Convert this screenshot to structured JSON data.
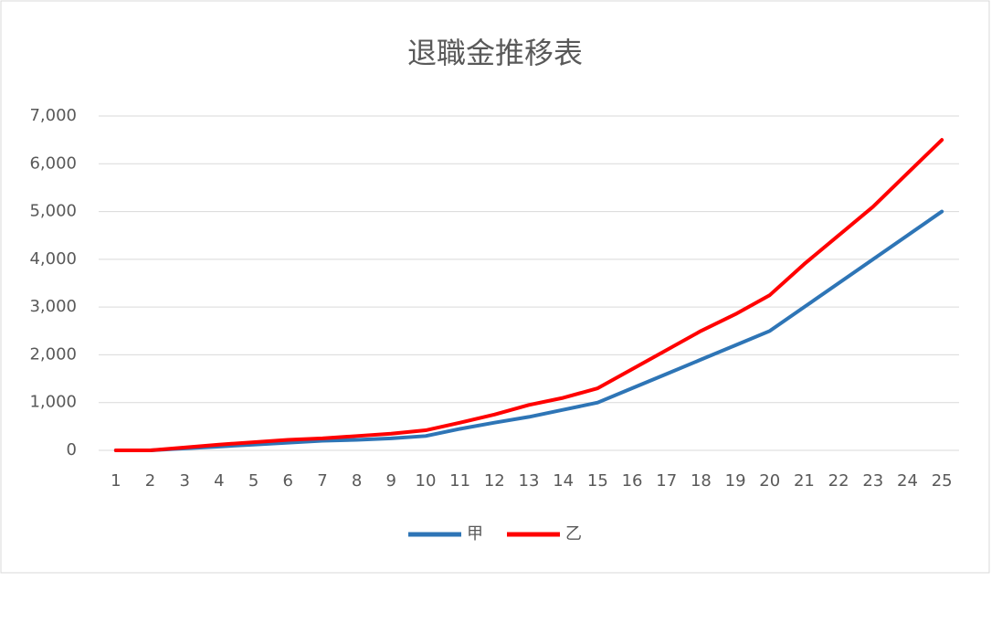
{
  "chart_data": {
    "type": "line",
    "title": "退職金推移表",
    "categories": [
      1,
      2,
      3,
      4,
      5,
      6,
      7,
      8,
      9,
      10,
      11,
      12,
      13,
      14,
      15,
      16,
      17,
      18,
      19,
      20,
      21,
      22,
      23,
      24,
      25
    ],
    "series": [
      {
        "name": "甲",
        "color": "#2e75b6",
        "values": [
          0,
          0,
          40,
          80,
          120,
          160,
          200,
          220,
          250,
          300,
          450,
          580,
          700,
          850,
          1000,
          1300,
          1600,
          1900,
          2200,
          2500,
          3000,
          3500,
          4000,
          4500,
          5000
        ]
      },
      {
        "name": "乙",
        "color": "#ff0000",
        "values": [
          0,
          0,
          60,
          120,
          170,
          220,
          250,
          300,
          350,
          420,
          580,
          750,
          950,
          1100,
          1300,
          1700,
          2100,
          2500,
          2850,
          3250,
          3900,
          4500,
          5100,
          5800,
          6500
        ]
      }
    ],
    "ylim": [
      0,
      7000
    ],
    "yticks": [
      0,
      {
        "value": 1000,
        "label": "1,000"
      },
      {
        "value": 2000,
        "label": "2,000"
      },
      {
        "value": 3000,
        "label": "3,000"
      },
      {
        "value": 4000,
        "label": "4,000"
      },
      {
        "value": 5000,
        "label": "5,000"
      },
      {
        "value": 6000,
        "label": "6,000"
      },
      {
        "value": 7000,
        "label": "7,000"
      }
    ],
    "grid": true,
    "legend": "bottom"
  }
}
